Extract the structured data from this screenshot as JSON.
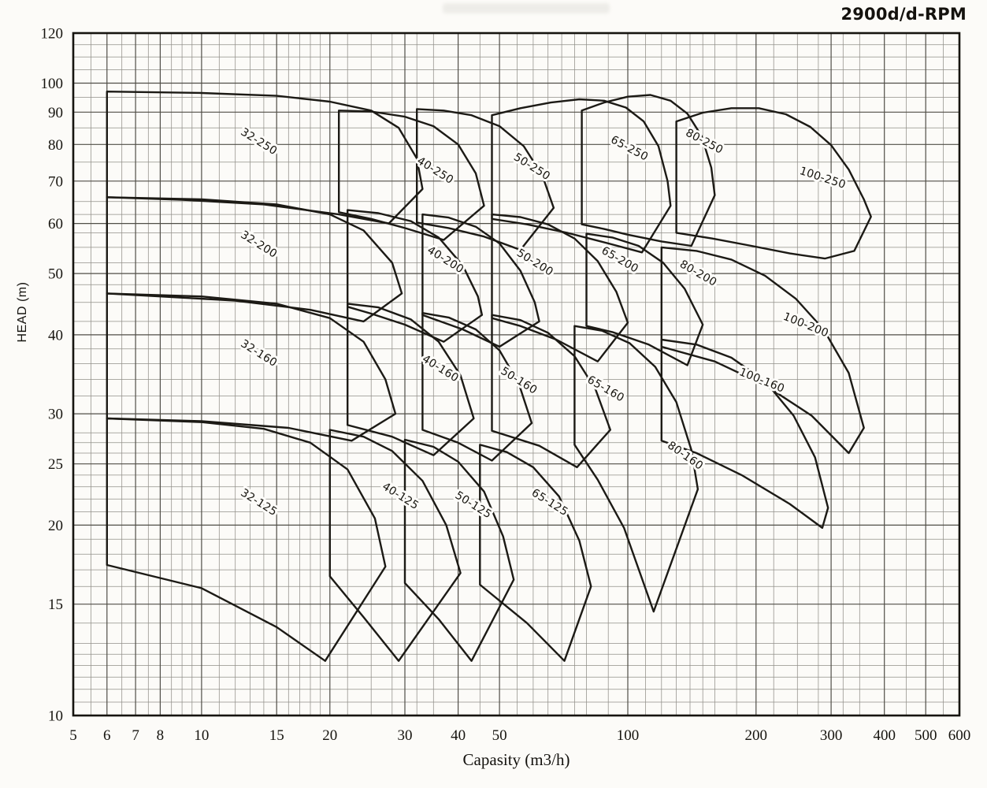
{
  "title_badge": "2900d/d-RPM",
  "chart_data": {
    "type": "line",
    "subtype": "pump-selection-envelope-map",
    "title": "2900d/d-RPM",
    "xlabel": "Capasity (m3/h)",
    "ylabel": "HEAD (m)",
    "x_scale": "log",
    "y_scale": "log",
    "xlim": [
      5,
      600
    ],
    "ylim": [
      10,
      120
    ],
    "grid": true,
    "legend_position": "none (labels inline on envelopes)",
    "x_ticks": [
      5,
      6,
      7,
      8,
      10,
      15,
      20,
      30,
      40,
      50,
      100,
      200,
      300,
      400,
      500,
      600
    ],
    "y_ticks": [
      10,
      15,
      20,
      25,
      30,
      40,
      50,
      60,
      70,
      80,
      90,
      100,
      120
    ],
    "x_grid_minor": [
      5,
      5.5,
      6,
      6.5,
      7,
      7.5,
      8,
      8.5,
      9,
      9.5,
      10,
      11,
      12,
      13,
      14,
      15,
      16,
      17,
      18,
      19,
      20,
      22,
      25,
      28,
      30,
      32,
      35,
      40,
      45,
      50,
      55,
      60,
      65,
      70,
      75,
      80,
      90,
      100,
      110,
      120,
      130,
      140,
      150,
      160,
      180,
      200,
      220,
      250,
      280,
      300,
      320,
      350,
      400,
      450,
      500,
      550,
      600
    ],
    "y_grid_minor": [
      10,
      10.5,
      11,
      11.5,
      12,
      12.5,
      13,
      14,
      15,
      16,
      17,
      18,
      19,
      20,
      21,
      22,
      23,
      24,
      25,
      26,
      27,
      28,
      30,
      32,
      34,
      36,
      38,
      40,
      42,
      45,
      48,
      50,
      52,
      55,
      58,
      60,
      62,
      65,
      70,
      75,
      80,
      85,
      90,
      95,
      100,
      105,
      110,
      115,
      120
    ],
    "series": [
      {
        "name": "32-250",
        "label_pos": [
          13.5,
          80
        ],
        "label_angle": 32,
        "points": [
          [
            6,
            97
          ],
          [
            10,
            96.5
          ],
          [
            15,
            95.5
          ],
          [
            20,
            93.5
          ],
          [
            25,
            90.5
          ],
          [
            29,
            85
          ],
          [
            32,
            76
          ],
          [
            33,
            68
          ],
          [
            27.5,
            60
          ],
          [
            21,
            62
          ],
          [
            14,
            64.3
          ],
          [
            9,
            65.4
          ],
          [
            6,
            66
          ]
        ]
      },
      {
        "name": "32-200",
        "label_pos": [
          13.5,
          55
        ],
        "label_angle": 32,
        "points": [
          [
            6,
            66
          ],
          [
            10,
            65.5
          ],
          [
            15,
            64.3
          ],
          [
            20,
            62
          ],
          [
            24,
            58.5
          ],
          [
            28,
            52
          ],
          [
            29.5,
            46.5
          ],
          [
            24,
            42
          ],
          [
            18,
            43.8
          ],
          [
            12,
            45.3
          ],
          [
            6,
            46.5
          ]
        ]
      },
      {
        "name": "32-160",
        "label_pos": [
          13.5,
          37
        ],
        "label_angle": 32,
        "points": [
          [
            6,
            46.5
          ],
          [
            10,
            46
          ],
          [
            15,
            44.8
          ],
          [
            20,
            42.5
          ],
          [
            24,
            39
          ],
          [
            27,
            34
          ],
          [
            28.5,
            30
          ],
          [
            22.5,
            27.2
          ],
          [
            16,
            28.5
          ],
          [
            10,
            29.2
          ],
          [
            6,
            29.5
          ]
        ]
      },
      {
        "name": "32-125",
        "label_pos": [
          13.5,
          21.5
        ],
        "label_angle": 32,
        "points": [
          [
            6,
            29.5
          ],
          [
            10,
            29.1
          ],
          [
            14,
            28.4
          ],
          [
            18,
            27
          ],
          [
            22,
            24.5
          ],
          [
            25.5,
            20.5
          ],
          [
            27,
            17.2
          ],
          [
            19.5,
            12.2
          ],
          [
            15,
            13.8
          ],
          [
            10,
            15.9
          ],
          [
            6,
            17.3
          ]
        ]
      },
      {
        "name": "40-250",
        "label_pos": [
          35,
          72
        ],
        "label_angle": 32,
        "points": [
          [
            21,
            90.5
          ],
          [
            25,
            90.2
          ],
          [
            30,
            88.5
          ],
          [
            35,
            85.5
          ],
          [
            40,
            80
          ],
          [
            44,
            72
          ],
          [
            46,
            64
          ],
          [
            37,
            56.5
          ],
          [
            30,
            59
          ],
          [
            25,
            61
          ],
          [
            21,
            62.5
          ]
        ]
      },
      {
        "name": "40-200",
        "label_pos": [
          37,
          52
        ],
        "label_angle": 32,
        "points": [
          [
            22,
            63
          ],
          [
            26,
            62.3
          ],
          [
            31,
            60.5
          ],
          [
            36,
            57
          ],
          [
            41,
            51.5
          ],
          [
            44.5,
            46
          ],
          [
            45.5,
            43
          ],
          [
            37,
            39
          ],
          [
            30,
            41.5
          ],
          [
            25,
            43.2
          ],
          [
            22,
            44.3
          ]
        ]
      },
      {
        "name": "40-160",
        "label_pos": [
          36,
          35
        ],
        "label_angle": 32,
        "points": [
          [
            22,
            44.8
          ],
          [
            26,
            44.2
          ],
          [
            31,
            42.3
          ],
          [
            36,
            39
          ],
          [
            40.5,
            34.5
          ],
          [
            43.5,
            29.5
          ],
          [
            35,
            25.8
          ],
          [
            28,
            27.6
          ],
          [
            22,
            28.8
          ]
        ]
      },
      {
        "name": "40-125",
        "label_pos": [
          29,
          22
        ],
        "label_angle": 32,
        "points": [
          [
            20,
            28.3
          ],
          [
            24,
            27.6
          ],
          [
            28,
            26.2
          ],
          [
            33,
            23.5
          ],
          [
            37.5,
            20
          ],
          [
            40.5,
            16.8
          ],
          [
            29,
            12.2
          ],
          [
            24,
            14.3
          ],
          [
            20,
            16.6
          ]
        ]
      },
      {
        "name": "50-250",
        "label_pos": [
          59,
          73
        ],
        "label_angle": 32,
        "points": [
          [
            32,
            91
          ],
          [
            37,
            90.5
          ],
          [
            43,
            89
          ],
          [
            50,
            85.5
          ],
          [
            57,
            79.5
          ],
          [
            63,
            71.5
          ],
          [
            67,
            63.5
          ],
          [
            56,
            54.5
          ],
          [
            46,
            57.2
          ],
          [
            38,
            59
          ],
          [
            32,
            60.2
          ]
        ]
      },
      {
        "name": "50-200",
        "label_pos": [
          60,
          51.5
        ],
        "label_angle": 32,
        "points": [
          [
            33,
            62
          ],
          [
            38,
            61.3
          ],
          [
            44,
            59.3
          ],
          [
            50,
            55.8
          ],
          [
            56,
            50.5
          ],
          [
            60.5,
            45
          ],
          [
            62,
            42
          ],
          [
            50,
            38.3
          ],
          [
            41,
            40.8
          ],
          [
            33,
            43
          ]
        ]
      },
      {
        "name": "50-160",
        "label_pos": [
          55,
          33.5
        ],
        "label_angle": 32,
        "points": [
          [
            33,
            43.3
          ],
          [
            38,
            42.6
          ],
          [
            44,
            40.8
          ],
          [
            50,
            37.8
          ],
          [
            55.5,
            33.5
          ],
          [
            59.5,
            29
          ],
          [
            48,
            25.3
          ],
          [
            40,
            27
          ],
          [
            33,
            28.3
          ]
        ]
      },
      {
        "name": "50-125",
        "label_pos": [
          43,
          21.3
        ],
        "label_angle": 32,
        "points": [
          [
            30,
            27.3
          ],
          [
            35,
            26.6
          ],
          [
            40,
            25.2
          ],
          [
            46,
            22.6
          ],
          [
            51,
            19.2
          ],
          [
            54,
            16.4
          ],
          [
            43,
            12.2
          ],
          [
            36,
            14.2
          ],
          [
            30,
            16.2
          ]
        ]
      },
      {
        "name": "65-250",
        "label_pos": [
          100,
          78
        ],
        "label_angle": 28,
        "points": [
          [
            48,
            89
          ],
          [
            56,
            91.3
          ],
          [
            66,
            93.2
          ],
          [
            77,
            94.3
          ],
          [
            88,
            93.8
          ],
          [
            99,
            91.5
          ],
          [
            109,
            87
          ],
          [
            118,
            79.5
          ],
          [
            124,
            70
          ],
          [
            126,
            64
          ],
          [
            108,
            54
          ],
          [
            90,
            55.8
          ],
          [
            72,
            58
          ],
          [
            58,
            59.8
          ],
          [
            48,
            61
          ]
        ]
      },
      {
        "name": "65-200",
        "label_pos": [
          95,
          52
        ],
        "label_angle": 30,
        "points": [
          [
            48,
            62
          ],
          [
            56,
            61.4
          ],
          [
            65,
            59.8
          ],
          [
            75,
            56.8
          ],
          [
            85,
            52.3
          ],
          [
            94,
            46.8
          ],
          [
            100,
            41.8
          ],
          [
            85,
            36.3
          ],
          [
            68,
            39.3
          ],
          [
            56,
            41.3
          ],
          [
            48,
            42.5
          ]
        ]
      },
      {
        "name": "65-160",
        "label_pos": [
          88,
          32.5
        ],
        "label_angle": 30,
        "points": [
          [
            48,
            43
          ],
          [
            56,
            42.2
          ],
          [
            65,
            40.3
          ],
          [
            75,
            37
          ],
          [
            84,
            32.8
          ],
          [
            91,
            28.3
          ],
          [
            76,
            24.7
          ],
          [
            62,
            26.7
          ],
          [
            48,
            28.2
          ]
        ]
      },
      {
        "name": "65-125",
        "label_pos": [
          65,
          21.5
        ],
        "label_angle": 32,
        "points": [
          [
            45,
            26.8
          ],
          [
            52,
            26.1
          ],
          [
            60,
            24.7
          ],
          [
            69,
            22.2
          ],
          [
            77,
            18.9
          ],
          [
            82,
            16
          ],
          [
            71,
            12.2
          ],
          [
            58,
            14
          ],
          [
            45,
            16.1
          ]
        ]
      },
      {
        "name": "80-250",
        "label_pos": [
          150,
          80
        ],
        "label_angle": 28,
        "points": [
          [
            78,
            90.5
          ],
          [
            88,
            93.2
          ],
          [
            100,
            95.2
          ],
          [
            113,
            95.8
          ],
          [
            126,
            93.8
          ],
          [
            138,
            89.5
          ],
          [
            149,
            82.5
          ],
          [
            157,
            73.5
          ],
          [
            160,
            66.5
          ],
          [
            141,
            55.3
          ],
          [
            120,
            56.2
          ],
          [
            100,
            57.6
          ],
          [
            88,
            58.8
          ],
          [
            78,
            59.8
          ]
        ]
      },
      {
        "name": "80-200",
        "label_pos": [
          145,
          49.5
        ],
        "label_angle": 30,
        "points": [
          [
            80,
            57.8
          ],
          [
            92,
            57
          ],
          [
            106,
            55.3
          ],
          [
            121,
            52
          ],
          [
            136,
            47.3
          ],
          [
            150,
            41.5
          ],
          [
            138,
            35.8
          ],
          [
            112,
            38.6
          ],
          [
            92,
            40.4
          ],
          [
            80,
            41.3
          ]
        ]
      },
      {
        "name": "80-160",
        "label_pos": [
          135,
          25.5
        ],
        "label_angle": 35,
        "points": [
          [
            75,
            41.3
          ],
          [
            87,
            40.6
          ],
          [
            101,
            38.8
          ],
          [
            116,
            35.6
          ],
          [
            130,
            31.3
          ],
          [
            141,
            26.3
          ],
          [
            146,
            22.8
          ],
          [
            115,
            14.6
          ],
          [
            98,
            19.8
          ],
          [
            85,
            23.6
          ],
          [
            75,
            26.8
          ]
        ]
      },
      {
        "name": "100-250",
        "label_pos": [
          285,
          70
        ],
        "label_angle": 18,
        "points": [
          [
            130,
            87
          ],
          [
            150,
            89.8
          ],
          [
            175,
            91.3
          ],
          [
            203,
            91.3
          ],
          [
            235,
            89.3
          ],
          [
            268,
            85.3
          ],
          [
            300,
            79.8
          ],
          [
            330,
            73
          ],
          [
            358,
            65.5
          ],
          [
            372,
            61.5
          ],
          [
            340,
            54.3
          ],
          [
            290,
            52.8
          ],
          [
            240,
            53.8
          ],
          [
            195,
            55.3
          ],
          [
            158,
            56.8
          ],
          [
            130,
            58
          ]
        ]
      },
      {
        "name": "100-200",
        "label_pos": [
          260,
          41
        ],
        "label_angle": 22,
        "points": [
          [
            120,
            55
          ],
          [
            145,
            54.3
          ],
          [
            175,
            52.6
          ],
          [
            210,
            49.6
          ],
          [
            248,
            45.6
          ],
          [
            288,
            40.8
          ],
          [
            330,
            34.8
          ],
          [
            358,
            28.5
          ],
          [
            330,
            26
          ],
          [
            270,
            29.8
          ],
          [
            210,
            33.3
          ],
          [
            160,
            36.3
          ],
          [
            120,
            38.3
          ]
        ]
      },
      {
        "name": "100-160",
        "label_pos": [
          205,
          33.5
        ],
        "label_angle": 22,
        "points": [
          [
            120,
            39.3
          ],
          [
            145,
            38.6
          ],
          [
            175,
            36.8
          ],
          [
            210,
            33.8
          ],
          [
            245,
            29.8
          ],
          [
            275,
            25.6
          ],
          [
            295,
            21.3
          ],
          [
            286,
            19.8
          ],
          [
            240,
            21.6
          ],
          [
            185,
            24
          ],
          [
            145,
            26
          ],
          [
            120,
            27.2
          ]
        ]
      }
    ]
  }
}
